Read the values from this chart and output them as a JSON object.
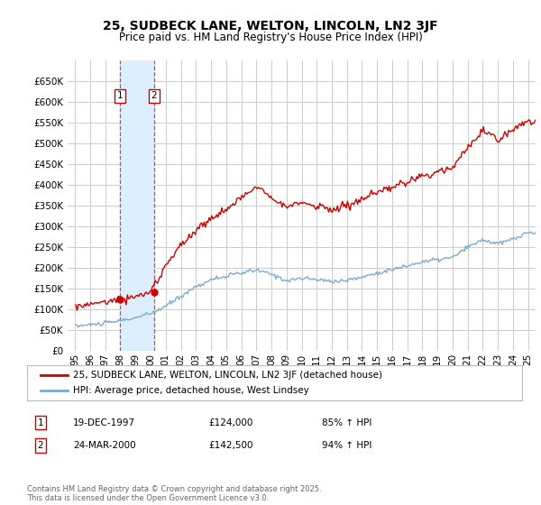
{
  "title": "25, SUDBECK LANE, WELTON, LINCOLN, LN2 3JF",
  "subtitle": "Price paid vs. HM Land Registry's House Price Index (HPI)",
  "legend_line1": "25, SUDBECK LANE, WELTON, LINCOLN, LN2 3JF (detached house)",
  "legend_line2": "HPI: Average price, detached house, West Lindsey",
  "footer": "Contains HM Land Registry data © Crown copyright and database right 2025.\nThis data is licensed under the Open Government Licence v3.0.",
  "sale1_date": "19-DEC-1997",
  "sale1_price": 124000,
  "sale1_hpi": "85% ↑ HPI",
  "sale2_date": "24-MAR-2000",
  "sale2_price": 142500,
  "sale2_hpi": "94% ↑ HPI",
  "property_color": "#cc0000",
  "hpi_color": "#7aadcf",
  "sale1_marker_date": 1997.96,
  "sale2_marker_date": 2000.23,
  "background_color": "#ffffff",
  "grid_color": "#cccccc",
  "highlight_color": "#ddeeff",
  "ylim": [
    0,
    700000
  ],
  "yticks": [
    0,
    50000,
    100000,
    150000,
    200000,
    250000,
    300000,
    350000,
    400000,
    450000,
    500000,
    550000,
    600000,
    650000
  ],
  "xlim": [
    1994.5,
    2025.5
  ]
}
